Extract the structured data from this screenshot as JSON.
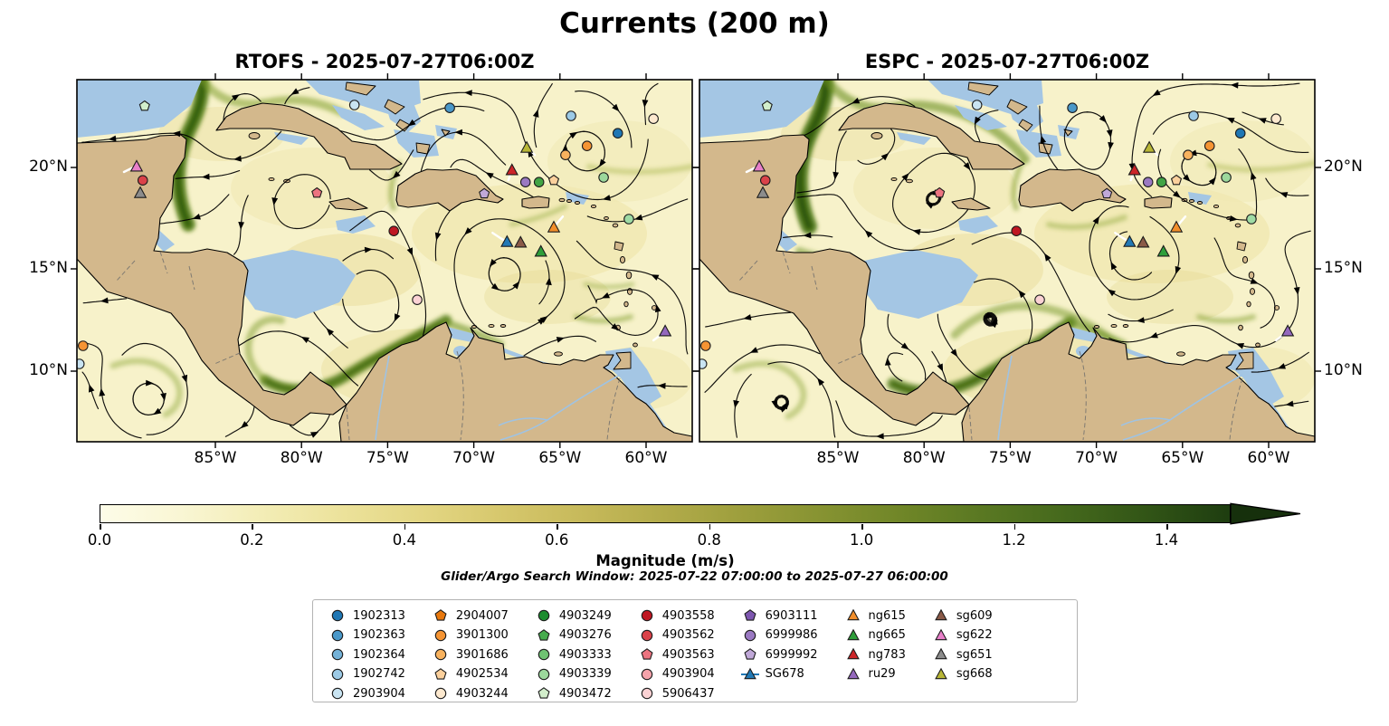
{
  "title": "Currents (200 m)",
  "panels": [
    {
      "id": "rtofs",
      "title": "RTOFS - 2025-07-27T06:00Z"
    },
    {
      "id": "espc",
      "title": "ESPC - 2025-07-27T06:00Z"
    }
  ],
  "axes": {
    "lon_labels": [
      "85°W",
      "80°W",
      "75°W",
      "70°W",
      "65°W",
      "60°W"
    ],
    "lon_fracs": [
      0.225,
      0.365,
      0.505,
      0.645,
      0.785,
      0.925
    ],
    "lat_labels": [
      "20°N",
      "15°N",
      "10°N"
    ],
    "lat_fracs": [
      0.2425,
      0.5225,
      0.805
    ]
  },
  "colorbar": {
    "label": "Magnitude (m/s)",
    "tick_labels": [
      "0.0",
      "0.2",
      "0.4",
      "0.6",
      "0.8",
      "1.0",
      "1.2",
      "1.4"
    ],
    "vmin": 0.0,
    "vmax": 1.4,
    "extend": "max",
    "stops": [
      "#fdfce8",
      "#f9f6d4",
      "#f3edb6",
      "#ece29b",
      "#e3d683",
      "#d6c76c",
      "#c6b95a",
      "#b2ab4a",
      "#9c9e3c",
      "#859231",
      "#6e8527",
      "#587722",
      "#44681c",
      "#315416",
      "#1e3d10"
    ],
    "arrow_color": "#16300c"
  },
  "annotation": "Glider/Argo Search Window: 2025-07-22 07:00:00 to 2025-07-27 06:00:00",
  "legend": {
    "columns": [
      [
        {
          "label": "1902313",
          "shape": "circle",
          "color": "#1f77b4"
        },
        {
          "label": "1902363",
          "shape": "circle",
          "color": "#4a98c9"
        },
        {
          "label": "1902364",
          "shape": "circle",
          "color": "#74b2d8"
        },
        {
          "label": "1902742",
          "shape": "circle",
          "color": "#9ccae6"
        },
        {
          "label": "2903904",
          "shape": "circle",
          "color": "#c9e4f2"
        }
      ],
      [
        {
          "label": "2904007",
          "shape": "pentagon",
          "color": "#e8780d"
        },
        {
          "label": "3901300",
          "shape": "circle",
          "color": "#f59433"
        },
        {
          "label": "3901686",
          "shape": "circle",
          "color": "#f8b25e"
        },
        {
          "label": "4902534",
          "shape": "pentagon",
          "color": "#fbd09c"
        },
        {
          "label": "4903244",
          "shape": "circle",
          "color": "#fde9cf"
        }
      ],
      [
        {
          "label": "4903249",
          "shape": "circle",
          "color": "#1e8c2f"
        },
        {
          "label": "4903276",
          "shape": "pentagon",
          "color": "#47ab4e"
        },
        {
          "label": "4903333",
          "shape": "circle",
          "color": "#6fc272"
        },
        {
          "label": "4903339",
          "shape": "circle",
          "color": "#9cd89c"
        },
        {
          "label": "4903472",
          "shape": "pentagon",
          "color": "#d2eecb"
        }
      ],
      [
        {
          "label": "4903558",
          "shape": "circle",
          "color": "#bf1722"
        },
        {
          "label": "4903562",
          "shape": "circle",
          "color": "#da4249"
        },
        {
          "label": "4903563",
          "shape": "pentagon",
          "color": "#ec7480"
        },
        {
          "label": "4903904",
          "shape": "circle",
          "color": "#f5a3ab"
        },
        {
          "label": "5906437",
          "shape": "circle",
          "color": "#fbd2d4"
        }
      ],
      [
        {
          "label": "6903111",
          "shape": "pentagon",
          "color": "#7e57b0"
        },
        {
          "label": "6999986",
          "shape": "circle",
          "color": "#9a79c2"
        },
        {
          "label": "6999992",
          "shape": "pentagon",
          "color": "#c0a8d8"
        },
        {
          "label": "SG678",
          "shape": "triangle-line",
          "color": "#2279b5"
        }
      ],
      [
        {
          "label": "ng615",
          "shape": "triangle",
          "color": "#f28e2b"
        },
        {
          "label": "ng665",
          "shape": "triangle",
          "color": "#2e9e3a"
        },
        {
          "label": "ng783",
          "shape": "triangle",
          "color": "#cc2529"
        },
        {
          "label": "ru29",
          "shape": "triangle",
          "color": "#9468bd"
        }
      ],
      [
        {
          "label": "sg609",
          "shape": "triangle",
          "color": "#8a5a48"
        },
        {
          "label": "sg622",
          "shape": "triangle",
          "color": "#e87fc9"
        },
        {
          "label": "sg651",
          "shape": "triangle",
          "color": "#8c8c8c"
        },
        {
          "label": "sg668",
          "shape": "triangle",
          "color": "#b8b636"
        }
      ]
    ]
  },
  "map_markers": [
    {
      "shape": "pentagon",
      "color": "#d2eecb",
      "fx": 0.11,
      "fy": 0.073
    },
    {
      "shape": "circle",
      "color": "#c9e4f2",
      "fx": 0.451,
      "fy": 0.07
    },
    {
      "shape": "circle",
      "color": "#4a98c9",
      "fx": 0.606,
      "fy": 0.078
    },
    {
      "shape": "circle",
      "color": "#9ccae6",
      "fx": 0.803,
      "fy": 0.1
    },
    {
      "shape": "circle",
      "color": "#1f77b4",
      "fx": 0.879,
      "fy": 0.148
    },
    {
      "shape": "circle",
      "color": "#fde9cf",
      "fx": 0.937,
      "fy": 0.108
    },
    {
      "shape": "circle",
      "color": "#f59433",
      "fx": 0.829,
      "fy": 0.183
    },
    {
      "shape": "triangle",
      "color": "#b8b636",
      "fx": 0.731,
      "fy": 0.188,
      "track": [
        [
          9,
          8
        ],
        [
          4,
          3
        ],
        [
          0,
          0
        ]
      ]
    },
    {
      "shape": "circle",
      "color": "#f8b25e",
      "fx": 0.794,
      "fy": 0.208
    },
    {
      "shape": "triangle",
      "color": "#cc2529",
      "fx": 0.707,
      "fy": 0.25,
      "track": [
        [
          -4,
          11
        ],
        [
          0,
          0
        ]
      ]
    },
    {
      "shape": "circle",
      "color": "#9a79c2",
      "fx": 0.729,
      "fy": 0.283
    },
    {
      "shape": "circle",
      "color": "#41a444",
      "fx": 0.751,
      "fy": 0.283
    },
    {
      "shape": "pentagon",
      "color": "#fbd09c",
      "fx": 0.775,
      "fy": 0.278
    },
    {
      "shape": "circle",
      "color": "#9cd89c",
      "fx": 0.856,
      "fy": 0.27
    },
    {
      "shape": "pentagon",
      "color": "#c0a8d8",
      "fx": 0.662,
      "fy": 0.315
    },
    {
      "shape": "pentagon",
      "color": "#ec7480",
      "fx": 0.39,
      "fy": 0.313
    },
    {
      "shape": "circle",
      "color": "#bf1722",
      "fx": 0.515,
      "fy": 0.418
    },
    {
      "shape": "triangle",
      "color": "#2279b5",
      "fx": 0.699,
      "fy": 0.448,
      "track": [
        [
          -16,
          -10
        ],
        [
          -7,
          -4
        ],
        [
          0,
          0
        ]
      ]
    },
    {
      "shape": "triangle",
      "color": "#8a5a48",
      "fx": 0.721,
      "fy": 0.45
    },
    {
      "shape": "triangle",
      "color": "#f28e2b",
      "fx": 0.775,
      "fy": 0.408,
      "track": [
        [
          10,
          -12
        ],
        [
          4,
          -5
        ],
        [
          0,
          0
        ]
      ]
    },
    {
      "shape": "triangle",
      "color": "#2e9e3a",
      "fx": 0.754,
      "fy": 0.475
    },
    {
      "shape": "circle",
      "color": "#9fdba4",
      "fx": 0.897,
      "fy": 0.385
    },
    {
      "shape": "triangle",
      "color": "#e87fc9",
      "fx": 0.097,
      "fy": 0.24,
      "track": [
        [
          -14,
          6
        ],
        [
          -6,
          2
        ],
        [
          0,
          0
        ]
      ]
    },
    {
      "shape": "circle",
      "color": "#da4249",
      "fx": 0.107,
      "fy": 0.278
    },
    {
      "shape": "triangle",
      "color": "#8c8c8c",
      "fx": 0.103,
      "fy": 0.313
    },
    {
      "shape": "circle",
      "color": "#fbd2d4",
      "fx": 0.553,
      "fy": 0.608
    },
    {
      "shape": "triangle",
      "color": "#9468bd",
      "fx": 0.956,
      "fy": 0.695,
      "track": [
        [
          -13,
          10
        ],
        [
          -5,
          4
        ],
        [
          0,
          0
        ]
      ]
    },
    {
      "shape": "circle",
      "color": "#f59433",
      "fx": 0.01,
      "fy": 0.735
    },
    {
      "shape": "circle",
      "color": "#c9e4f2",
      "fx": 0.004,
      "fy": 0.785
    }
  ],
  "chart_data": {
    "type": "map-streamplot",
    "title": "Currents (200 m)",
    "depth_m": 200,
    "variable": "current magnitude",
    "units": "m/s",
    "panels": [
      {
        "model": "RTOFS",
        "valid_time": "2025-07-27T06:00Z"
      },
      {
        "model": "ESPC",
        "valid_time": "2025-07-27T06:00Z"
      }
    ],
    "colorbar": {
      "min": 0.0,
      "max": 1.4,
      "tick_step": 0.2,
      "extend": "max",
      "label": "Magnitude (m/s)"
    },
    "x_axis": {
      "type": "longitude",
      "ticks": [
        "85°W",
        "80°W",
        "75°W",
        "70°W",
        "65°W",
        "60°W"
      ]
    },
    "y_axis": {
      "type": "latitude",
      "ticks": [
        "20°N",
        "15°N",
        "10°N"
      ]
    },
    "search_window": {
      "start": "2025-07-22 07:00:00",
      "end": "2025-07-27 06:00:00"
    },
    "argo_floats": [
      "1902313",
      "1902363",
      "1902364",
      "1902742",
      "2903904",
      "2904007",
      "3901300",
      "3901686",
      "4902534",
      "4903244",
      "4903249",
      "4903276",
      "4903333",
      "4903339",
      "4903472",
      "4903558",
      "4903562",
      "4903563",
      "4903904",
      "5906437",
      "6903111",
      "6999986",
      "6999992"
    ],
    "gliders": [
      "SG678",
      "ng615",
      "ng665",
      "ng783",
      "ru29",
      "sg609",
      "sg622",
      "sg651",
      "sg668"
    ]
  }
}
